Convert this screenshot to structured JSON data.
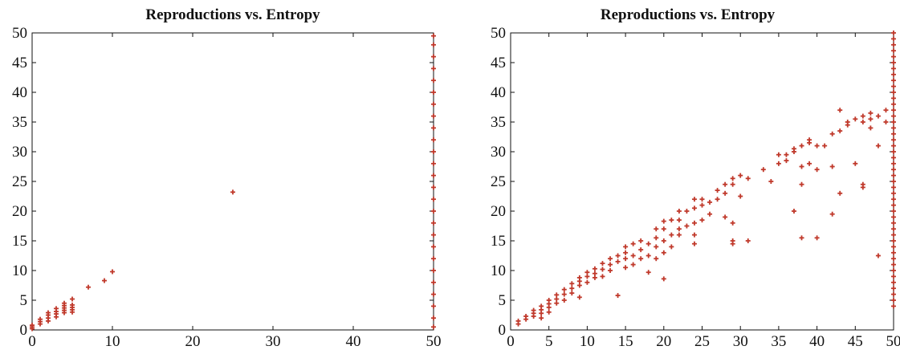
{
  "chart_data": [
    {
      "type": "scatter",
      "title": "Reproductions vs. Entropy",
      "xlabel": "",
      "ylabel": "",
      "xlim": [
        0,
        50
      ],
      "ylim": [
        0,
        50
      ],
      "xticks": [
        0,
        10,
        20,
        30,
        40,
        50
      ],
      "yticks": [
        0,
        5,
        10,
        15,
        20,
        25,
        30,
        35,
        40,
        45,
        50
      ],
      "grid": false,
      "marker_color": "#c0392b",
      "series": [
        {
          "points": [
            [
              0,
              0.2
            ],
            [
              0,
              0.5
            ],
            [
              0,
              0.8
            ],
            [
              1,
              1.0
            ],
            [
              1,
              1.4
            ],
            [
              1,
              1.8
            ],
            [
              2,
              1.5
            ],
            [
              2,
              2.0
            ],
            [
              2,
              2.5
            ],
            [
              2,
              2.9
            ],
            [
              3,
              2.2
            ],
            [
              3,
              2.7
            ],
            [
              3,
              3.1
            ],
            [
              3,
              3.6
            ],
            [
              4,
              2.9
            ],
            [
              4,
              3.3
            ],
            [
              4,
              3.7
            ],
            [
              4,
              4.1
            ],
            [
              4,
              4.5
            ],
            [
              5,
              3.0
            ],
            [
              5,
              3.4
            ],
            [
              5,
              3.8
            ],
            [
              5,
              4.2
            ],
            [
              5,
              5.2
            ],
            [
              7,
              7.2
            ],
            [
              9,
              8.3
            ],
            [
              10,
              9.8
            ],
            [
              25,
              23.2
            ],
            [
              50,
              0.5
            ],
            [
              50,
              2
            ],
            [
              50,
              4
            ],
            [
              50,
              6
            ],
            [
              50,
              8
            ],
            [
              50,
              10
            ],
            [
              50,
              12
            ],
            [
              50,
              14
            ],
            [
              50,
              16
            ],
            [
              50,
              18
            ],
            [
              50,
              20
            ],
            [
              50,
              22
            ],
            [
              50,
              24
            ],
            [
              50,
              26
            ],
            [
              50,
              28
            ],
            [
              50,
              30
            ],
            [
              50,
              32
            ],
            [
              50,
              34
            ],
            [
              50,
              36
            ],
            [
              50,
              38
            ],
            [
              50,
              40
            ],
            [
              50,
              42
            ],
            [
              50,
              44
            ],
            [
              50,
              46
            ],
            [
              50,
              48
            ],
            [
              50,
              49.5
            ]
          ]
        }
      ]
    },
    {
      "type": "scatter",
      "title": "Reproductions vs. Entropy",
      "xlabel": "",
      "ylabel": "",
      "xlim": [
        0,
        50
      ],
      "ylim": [
        0,
        50
      ],
      "xticks": [
        0,
        5,
        10,
        15,
        20,
        25,
        30,
        35,
        40,
        45,
        50
      ],
      "yticks": [
        0,
        5,
        10,
        15,
        20,
        25,
        30,
        35,
        40,
        45,
        50
      ],
      "grid": false,
      "marker_color": "#c0392b",
      "series": [
        {
          "points": [
            [
              1,
              1.0
            ],
            [
              1,
              1.5
            ],
            [
              2,
              1.8
            ],
            [
              2,
              2.3
            ],
            [
              3,
              2.3
            ],
            [
              3,
              2.8
            ],
            [
              3,
              3.3
            ],
            [
              4,
              2.0
            ],
            [
              4,
              2.8
            ],
            [
              4,
              3.4
            ],
            [
              4,
              4.0
            ],
            [
              5,
              3.0
            ],
            [
              5,
              3.8
            ],
            [
              5,
              4.4
            ],
            [
              5,
              5.0
            ],
            [
              6,
              4.5
            ],
            [
              6,
              5.2
            ],
            [
              6,
              5.9
            ],
            [
              7,
              5.0
            ],
            [
              7,
              6.0
            ],
            [
              7,
              6.8
            ],
            [
              8,
              6.2
            ],
            [
              8,
              7.0
            ],
            [
              8,
              7.8
            ],
            [
              9,
              5.5
            ],
            [
              9,
              7.5
            ],
            [
              9,
              8.2
            ],
            [
              9,
              8.8
            ],
            [
              10,
              8.0
            ],
            [
              10,
              9.0
            ],
            [
              10,
              9.7
            ],
            [
              11,
              8.8
            ],
            [
              11,
              9.5
            ],
            [
              11,
              10.3
            ],
            [
              12,
              9.0
            ],
            [
              12,
              10.2
            ],
            [
              12,
              11.2
            ],
            [
              13,
              10.0
            ],
            [
              13,
              11.0
            ],
            [
              13,
              12.0
            ],
            [
              14,
              5.8
            ],
            [
              14,
              11.5
            ],
            [
              14,
              12.5
            ],
            [
              15,
              10.5
            ],
            [
              15,
              12.0
            ],
            [
              15,
              13.0
            ],
            [
              15,
              14.0
            ],
            [
              16,
              11.0
            ],
            [
              16,
              12.5
            ],
            [
              16,
              14.5
            ],
            [
              17,
              12.0
            ],
            [
              17,
              13.5
            ],
            [
              17,
              15.0
            ],
            [
              18,
              9.7
            ],
            [
              18,
              12.5
            ],
            [
              18,
              14.5
            ],
            [
              19,
              12.0
            ],
            [
              19,
              14.0
            ],
            [
              19,
              15.5
            ],
            [
              19,
              17.0
            ],
            [
              20,
              8.6
            ],
            [
              20,
              13.0
            ],
            [
              20,
              15.0
            ],
            [
              20,
              17.0
            ],
            [
              20,
              18.3
            ],
            [
              21,
              14.0
            ],
            [
              21,
              16.0
            ],
            [
              21,
              18.5
            ],
            [
              22,
              16.0
            ],
            [
              22,
              17.0
            ],
            [
              22,
              18.5
            ],
            [
              22,
              20.0
            ],
            [
              23,
              17.5
            ],
            [
              23,
              20.0
            ],
            [
              24,
              14.5
            ],
            [
              24,
              16.0
            ],
            [
              24,
              18.0
            ],
            [
              24,
              20.5
            ],
            [
              24,
              22.0
            ],
            [
              25,
              18.5
            ],
            [
              25,
              21.0
            ],
            [
              25,
              22.0
            ],
            [
              26,
              19.5
            ],
            [
              26,
              21.5
            ],
            [
              27,
              22.0
            ],
            [
              27,
              23.5
            ],
            [
              28,
              19.0
            ],
            [
              28,
              23.0
            ],
            [
              28,
              24.5
            ],
            [
              29,
              14.5
            ],
            [
              29,
              15.0
            ],
            [
              29,
              18.0
            ],
            [
              29,
              24.5
            ],
            [
              29,
              25.5
            ],
            [
              30,
              22.5
            ],
            [
              30,
              26.0
            ],
            [
              31,
              15.0
            ],
            [
              31,
              25.5
            ],
            [
              33,
              27.0
            ],
            [
              34,
              25.0
            ],
            [
              35,
              28.0
            ],
            [
              35,
              29.5
            ],
            [
              36,
              28.5
            ],
            [
              36,
              29.5
            ],
            [
              37,
              20.0
            ],
            [
              37,
              30.0
            ],
            [
              37,
              30.5
            ],
            [
              38,
              15.5
            ],
            [
              38,
              24.5
            ],
            [
              38,
              27.5
            ],
            [
              38,
              31.0
            ],
            [
              39,
              28.0
            ],
            [
              39,
              31.5
            ],
            [
              39,
              32.0
            ],
            [
              40,
              15.5
            ],
            [
              40,
              27.0
            ],
            [
              40,
              31.0
            ],
            [
              41,
              31.0
            ],
            [
              42,
              19.5
            ],
            [
              42,
              27.5
            ],
            [
              42,
              33.0
            ],
            [
              43,
              23.0
            ],
            [
              43,
              33.5
            ],
            [
              43,
              37.0
            ],
            [
              44,
              34.5
            ],
            [
              44,
              35.0
            ],
            [
              45,
              28.0
            ],
            [
              45,
              35.5
            ],
            [
              46,
              24.0
            ],
            [
              46,
              24.5
            ],
            [
              46,
              35.0
            ],
            [
              46,
              36.0
            ],
            [
              47,
              34.0
            ],
            [
              47,
              35.5
            ],
            [
              47,
              36.5
            ],
            [
              48,
              12.5
            ],
            [
              48,
              31.0
            ],
            [
              48,
              36.0
            ],
            [
              49,
              35.0
            ],
            [
              49,
              37.0
            ],
            [
              50,
              4
            ],
            [
              50,
              5
            ],
            [
              50,
              6
            ],
            [
              50,
              7
            ],
            [
              50,
              8
            ],
            [
              50,
              9
            ],
            [
              50,
              10
            ],
            [
              50,
              11
            ],
            [
              50,
              12
            ],
            [
              50,
              13
            ],
            [
              50,
              14
            ],
            [
              50,
              15
            ],
            [
              50,
              16
            ],
            [
              50,
              17
            ],
            [
              50,
              18
            ],
            [
              50,
              19
            ],
            [
              50,
              20
            ],
            [
              50,
              21
            ],
            [
              50,
              22
            ],
            [
              50,
              23
            ],
            [
              50,
              24
            ],
            [
              50,
              25
            ],
            [
              50,
              26
            ],
            [
              50,
              27
            ],
            [
              50,
              28
            ],
            [
              50,
              29
            ],
            [
              50,
              30
            ],
            [
              50,
              31
            ],
            [
              50,
              32
            ],
            [
              50,
              33
            ],
            [
              50,
              34
            ],
            [
              50,
              35
            ],
            [
              50,
              36
            ],
            [
              50,
              37
            ],
            [
              50,
              38
            ],
            [
              50,
              39
            ],
            [
              50,
              40
            ],
            [
              50,
              41
            ],
            [
              50,
              42
            ],
            [
              50,
              43
            ],
            [
              50,
              44
            ],
            [
              50,
              45
            ],
            [
              50,
              46
            ],
            [
              50,
              47
            ],
            [
              50,
              48
            ],
            [
              50,
              49
            ],
            [
              50,
              50
            ]
          ]
        }
      ]
    }
  ]
}
